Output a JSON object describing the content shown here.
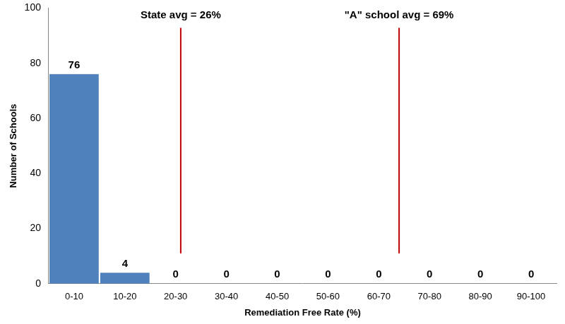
{
  "chart_data": {
    "type": "histogram",
    "bins": [
      0,
      10,
      20,
      30,
      40,
      50,
      60,
      70,
      80,
      90,
      100
    ],
    "categories": [
      "0-10",
      "10-20",
      "20-30",
      "30-40",
      "40-50",
      "50-60",
      "60-70",
      "70-80",
      "80-90",
      "90-100"
    ],
    "values": [
      76,
      4,
      0,
      0,
      0,
      0,
      0,
      0,
      0,
      0
    ],
    "color": "#4f81bd",
    "x_label": "Remediation Free Rate (%)",
    "y_label": "Number of Schools",
    "xlim": [
      0,
      100
    ],
    "ylim": [
      0,
      100
    ],
    "yticks": [
      0,
      20,
      40,
      60,
      80,
      100
    ],
    "grid": false,
    "data_labels": true,
    "annotations": [
      {
        "text": "State avg = 26%",
        "x": 26,
        "color": "#c00000"
      },
      {
        "text": "\"A\" school avg = 69%",
        "x": 69,
        "color": "#c00000"
      }
    ]
  }
}
